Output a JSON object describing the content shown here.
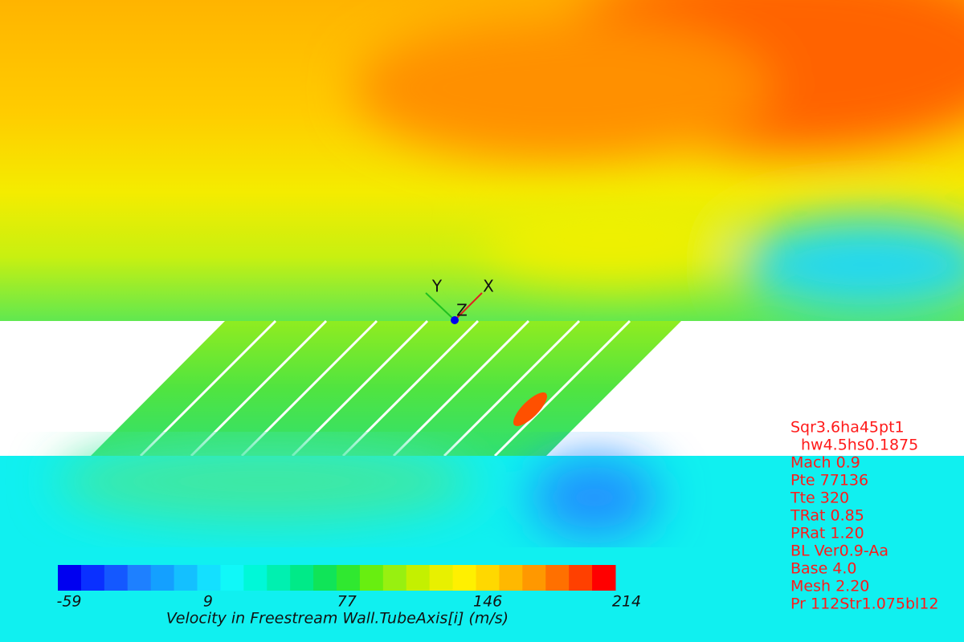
{
  "triad": {
    "x": "X",
    "y": "Y",
    "z": "Z"
  },
  "colorbar": {
    "range": [
      -59,
      214
    ],
    "ticks": [
      -59,
      9,
      77,
      146,
      214
    ],
    "label": "Velocity in Freestream Wall.TubeAxis[i] (m/s)",
    "colors": [
      "#0000f0",
      "#0a30ff",
      "#1458ff",
      "#1e80ff",
      "#14a0ff",
      "#14c0ff",
      "#14e0ff",
      "#10f8f8",
      "#00f8d8",
      "#00f0b0",
      "#00ea88",
      "#10e458",
      "#30e830",
      "#68ee10",
      "#98f010",
      "#c4f000",
      "#e8f000",
      "#fff000",
      "#ffd800",
      "#ffb800",
      "#ff9800",
      "#ff7000",
      "#ff4000",
      "#ff0000"
    ]
  },
  "info": [
    "Sqr3.6ha45pt1",
    "hw4.5hs0.1875",
    "Mach 0.9",
    "Pte 77136",
    "Tte 320",
    "TRat 0.85",
    "PRat 1.20",
    "BL Ver0.9-Aa",
    "Base 4.0",
    "Mesh 2.20",
    "Pr 112Str1.075bl12"
  ]
}
